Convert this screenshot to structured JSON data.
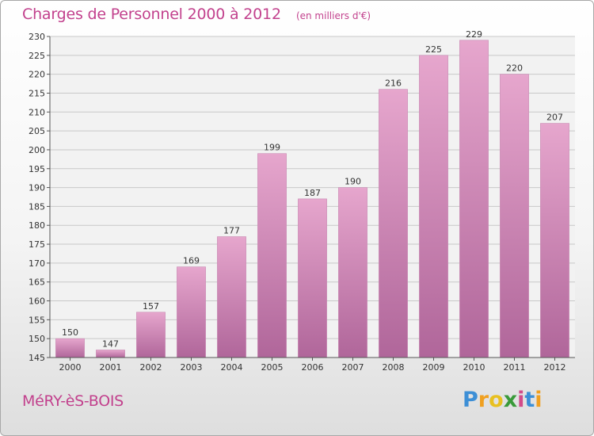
{
  "header": {
    "title": "Charges de Personnel 2000 à 2012",
    "subtitle": "(en milliers d'€)"
  },
  "footer": {
    "commune": "MéRY-èS-BOIS",
    "brand": "Proxiti",
    "brand_letters": [
      {
        "char": "P",
        "color": "#3d8fd6"
      },
      {
        "char": "r",
        "color": "#f0a020"
      },
      {
        "char": "o",
        "color": "#e8c020"
      },
      {
        "char": "x",
        "color": "#3a9a3a"
      },
      {
        "char": "i",
        "color": "#d24b8a"
      },
      {
        "char": "t",
        "color": "#3d8fd6"
      },
      {
        "char": "i",
        "color": "#f0a020"
      }
    ]
  },
  "colors": {
    "accent": "#c2418d",
    "bar_top": "#e6a6cd",
    "bar_bottom": "#b0669a",
    "grid": "#c8c8c8"
  },
  "chart_data": {
    "type": "bar",
    "title": "Charges de Personnel 2000 à 2012",
    "subtitle": "(en milliers d'€)",
    "categories": [
      "2000",
      "2001",
      "2002",
      "2003",
      "2004",
      "2005",
      "2006",
      "2007",
      "2008",
      "2009",
      "2010",
      "2011",
      "2012"
    ],
    "values": [
      150,
      147,
      157,
      169,
      177,
      199,
      187,
      190,
      216,
      225,
      229,
      220,
      207
    ],
    "xlabel": "",
    "ylabel": "",
    "ylim": [
      145,
      230
    ],
    "yticks": [
      145,
      150,
      155,
      160,
      165,
      170,
      175,
      180,
      185,
      190,
      195,
      200,
      205,
      210,
      215,
      220,
      225,
      230
    ],
    "grid": true,
    "data_labels": true
  }
}
